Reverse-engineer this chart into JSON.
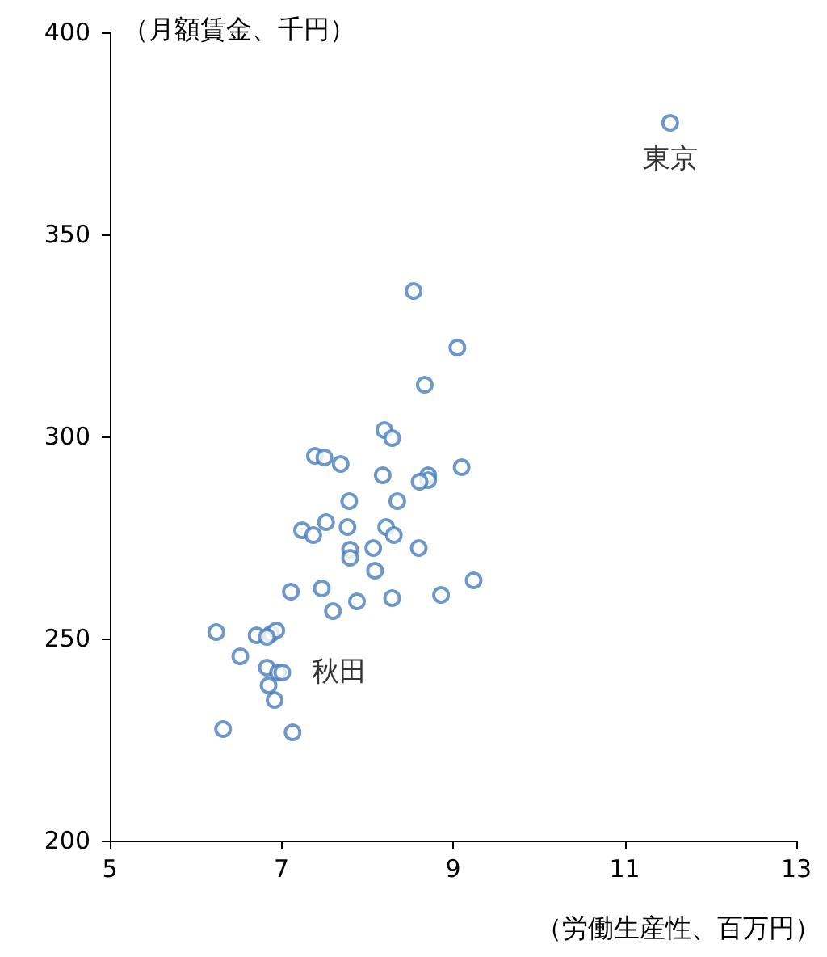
{
  "chart_data": {
    "type": "scatter",
    "xlabel": "（労働生産性、百万円）",
    "ylabel": "（月額賃金、千円）",
    "x": [
      11.53,
      8.54,
      9.05,
      8.67,
      8.2,
      8.29,
      7.39,
      7.5,
      7.69,
      9.1,
      8.18,
      8.71,
      8.71,
      8.61,
      8.35,
      7.79,
      7.52,
      7.24,
      7.77,
      7.37,
      8.22,
      8.31,
      8.07,
      7.8,
      8.6,
      7.8,
      8.09,
      9.24,
      7.11,
      7.47,
      8.29,
      8.86,
      7.88,
      7.6,
      6.24,
      6.71,
      6.88,
      6.94,
      6.83,
      6.52,
      6.83,
      6.96,
      7.01,
      6.85,
      6.92,
      6.32,
      7.13
    ],
    "values": [
      377.6,
      336,
      322,
      312.8,
      301.6,
      299.6,
      295.2,
      294.8,
      293.2,
      292.4,
      290.4,
      290.4,
      289.2,
      288.8,
      284,
      284,
      278.8,
      276.8,
      277.6,
      275.6,
      277.6,
      275.6,
      272.4,
      272,
      272.4,
      270,
      266.8,
      264.4,
      261.6,
      262.4,
      260,
      260.8,
      259.2,
      256.8,
      251.6,
      250.8,
      251.2,
      252,
      250.4,
      245.6,
      242.8,
      241.6,
      241.6,
      238.4,
      234.8,
      227.6,
      226.8
    ],
    "color": "#4a7ebb",
    "marker": "circle",
    "xlim": [
      5,
      13
    ],
    "xticks": [
      5,
      7,
      9,
      11,
      13
    ],
    "ylim": [
      200,
      400
    ],
    "yticks": [
      200,
      250,
      300,
      350,
      400
    ],
    "grid": false,
    "annotations": [
      {
        "text": "東京",
        "x": 11.53,
        "y": 377.6
      },
      {
        "text": "秋田",
        "x": 7.01,
        "y": 241.6
      }
    ]
  }
}
